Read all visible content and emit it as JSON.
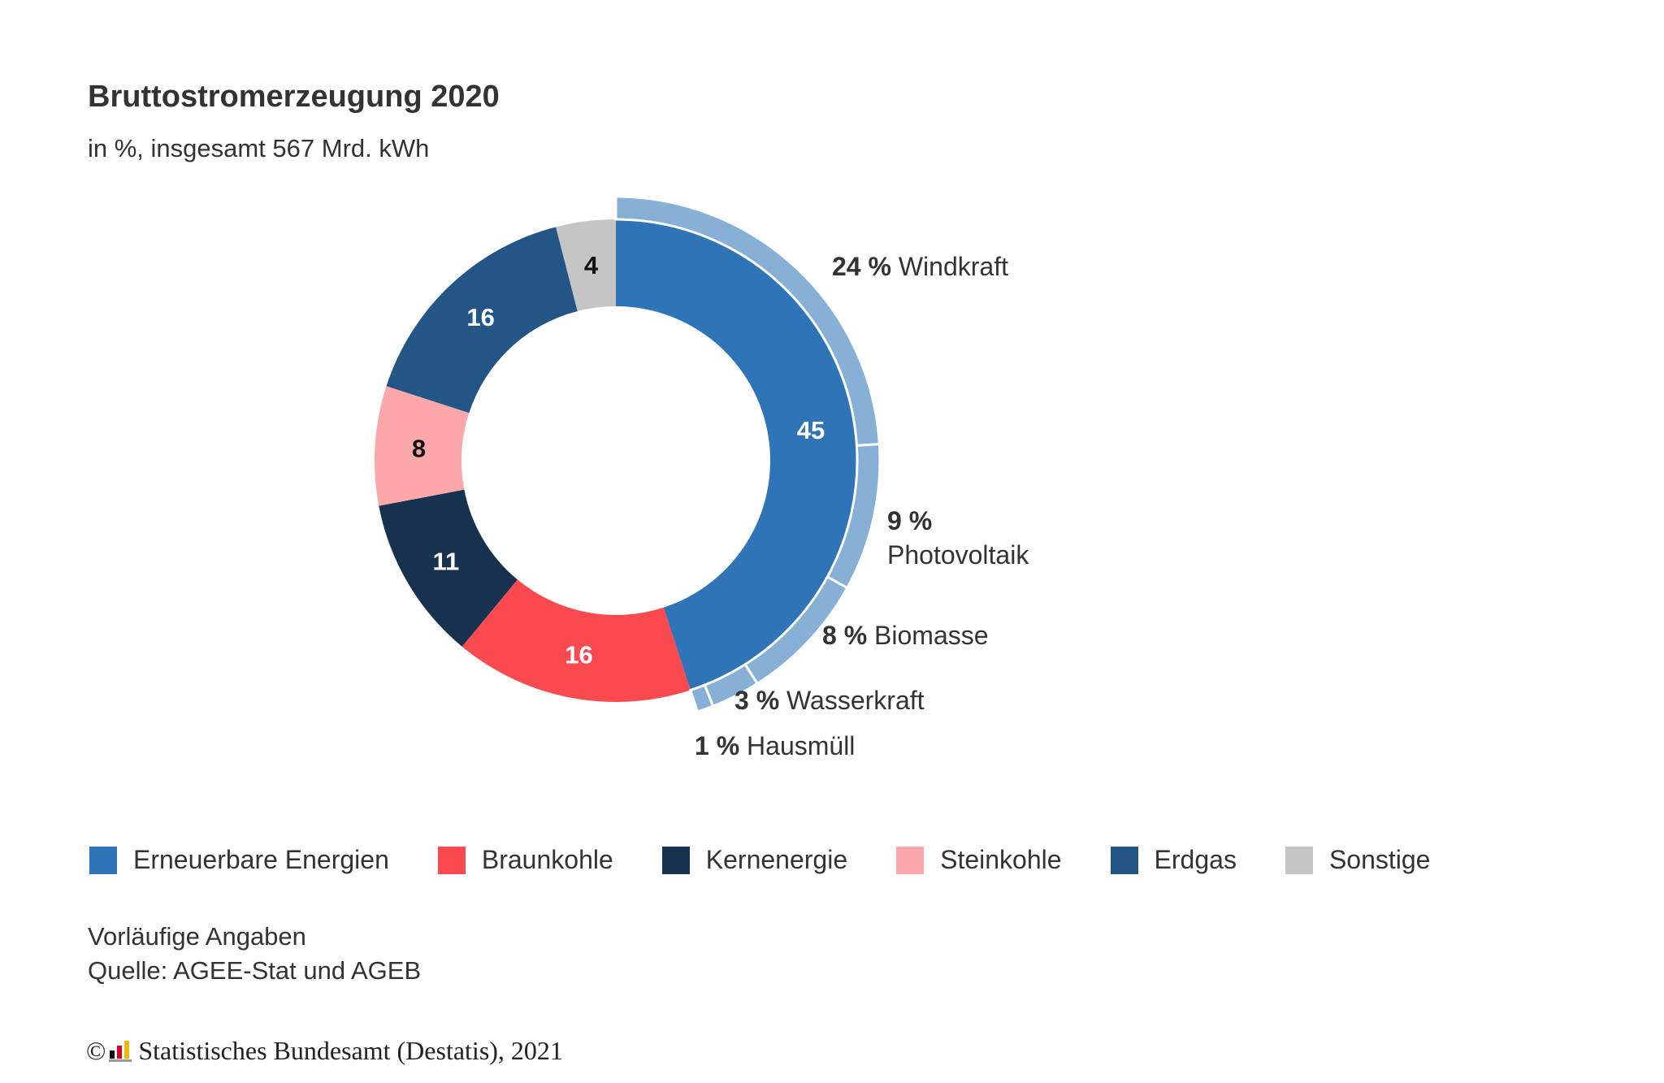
{
  "header": {
    "title": "Bruttostromerzeugung 2020",
    "subtitle": "in %, insgesamt 567 Mrd. kWh"
  },
  "chart_data": {
    "type": "pie",
    "title": "Bruttostromerzeugung 2020",
    "subtitle": "in %, insgesamt 567 Mrd. kWh",
    "inner": [
      {
        "name": "Erneuerbare Energien",
        "value": 45,
        "label": "45",
        "color": "#2e74b7",
        "label_color": "#ffffff"
      },
      {
        "name": "Braunkohle",
        "value": 16,
        "label": "16",
        "color": "#fb4a4f",
        "label_color": "#ffffff"
      },
      {
        "name": "Kernenergie",
        "value": 11,
        "label": "11",
        "color": "#17324f",
        "label_color": "#ffffff"
      },
      {
        "name": "Steinkohle",
        "value": 8,
        "label": "8",
        "color": "#fca7a9",
        "label_color": "#111111"
      },
      {
        "name": "Erdgas",
        "value": 16,
        "label": "16",
        "color": "#235687",
        "label_color": "#ffffff"
      },
      {
        "name": "Sonstige",
        "value": 4,
        "label": "4",
        "color": "#c5c5c5",
        "label_color": "#111111"
      }
    ],
    "outer": {
      "parent": "Erneuerbare Energien",
      "color": "#87b0d6",
      "segments": [
        {
          "name": "Windkraft",
          "value": 24,
          "pct": "24 %"
        },
        {
          "name": "Photovoltaik",
          "value": 9,
          "pct": "9 %"
        },
        {
          "name": "Biomasse",
          "value": 8,
          "pct": "8 %"
        },
        {
          "name": "Wasserkraft",
          "value": 3,
          "pct": "3 %"
        },
        {
          "name": "Hausmüll",
          "value": 1,
          "pct": "1 %"
        }
      ]
    },
    "legend_position": "bottom"
  },
  "legend": [
    {
      "label": "Erneuerbare Energien",
      "color": "#2e74b7"
    },
    {
      "label": "Braunkohle",
      "color": "#fb4a4f"
    },
    {
      "label": "Kernenergie",
      "color": "#17324f"
    },
    {
      "label": "Steinkohle",
      "color": "#fca7a9"
    },
    {
      "label": "Erdgas",
      "color": "#235687"
    },
    {
      "label": "Sonstige",
      "color": "#c5c5c5"
    }
  ],
  "notes": {
    "line1": "Vorläufige Angaben",
    "line2": "Quelle: AGEE-Stat und AGEB"
  },
  "footer": {
    "copyright": "©",
    "text": "Statistisches Bundesamt (Destatis), 2021"
  }
}
